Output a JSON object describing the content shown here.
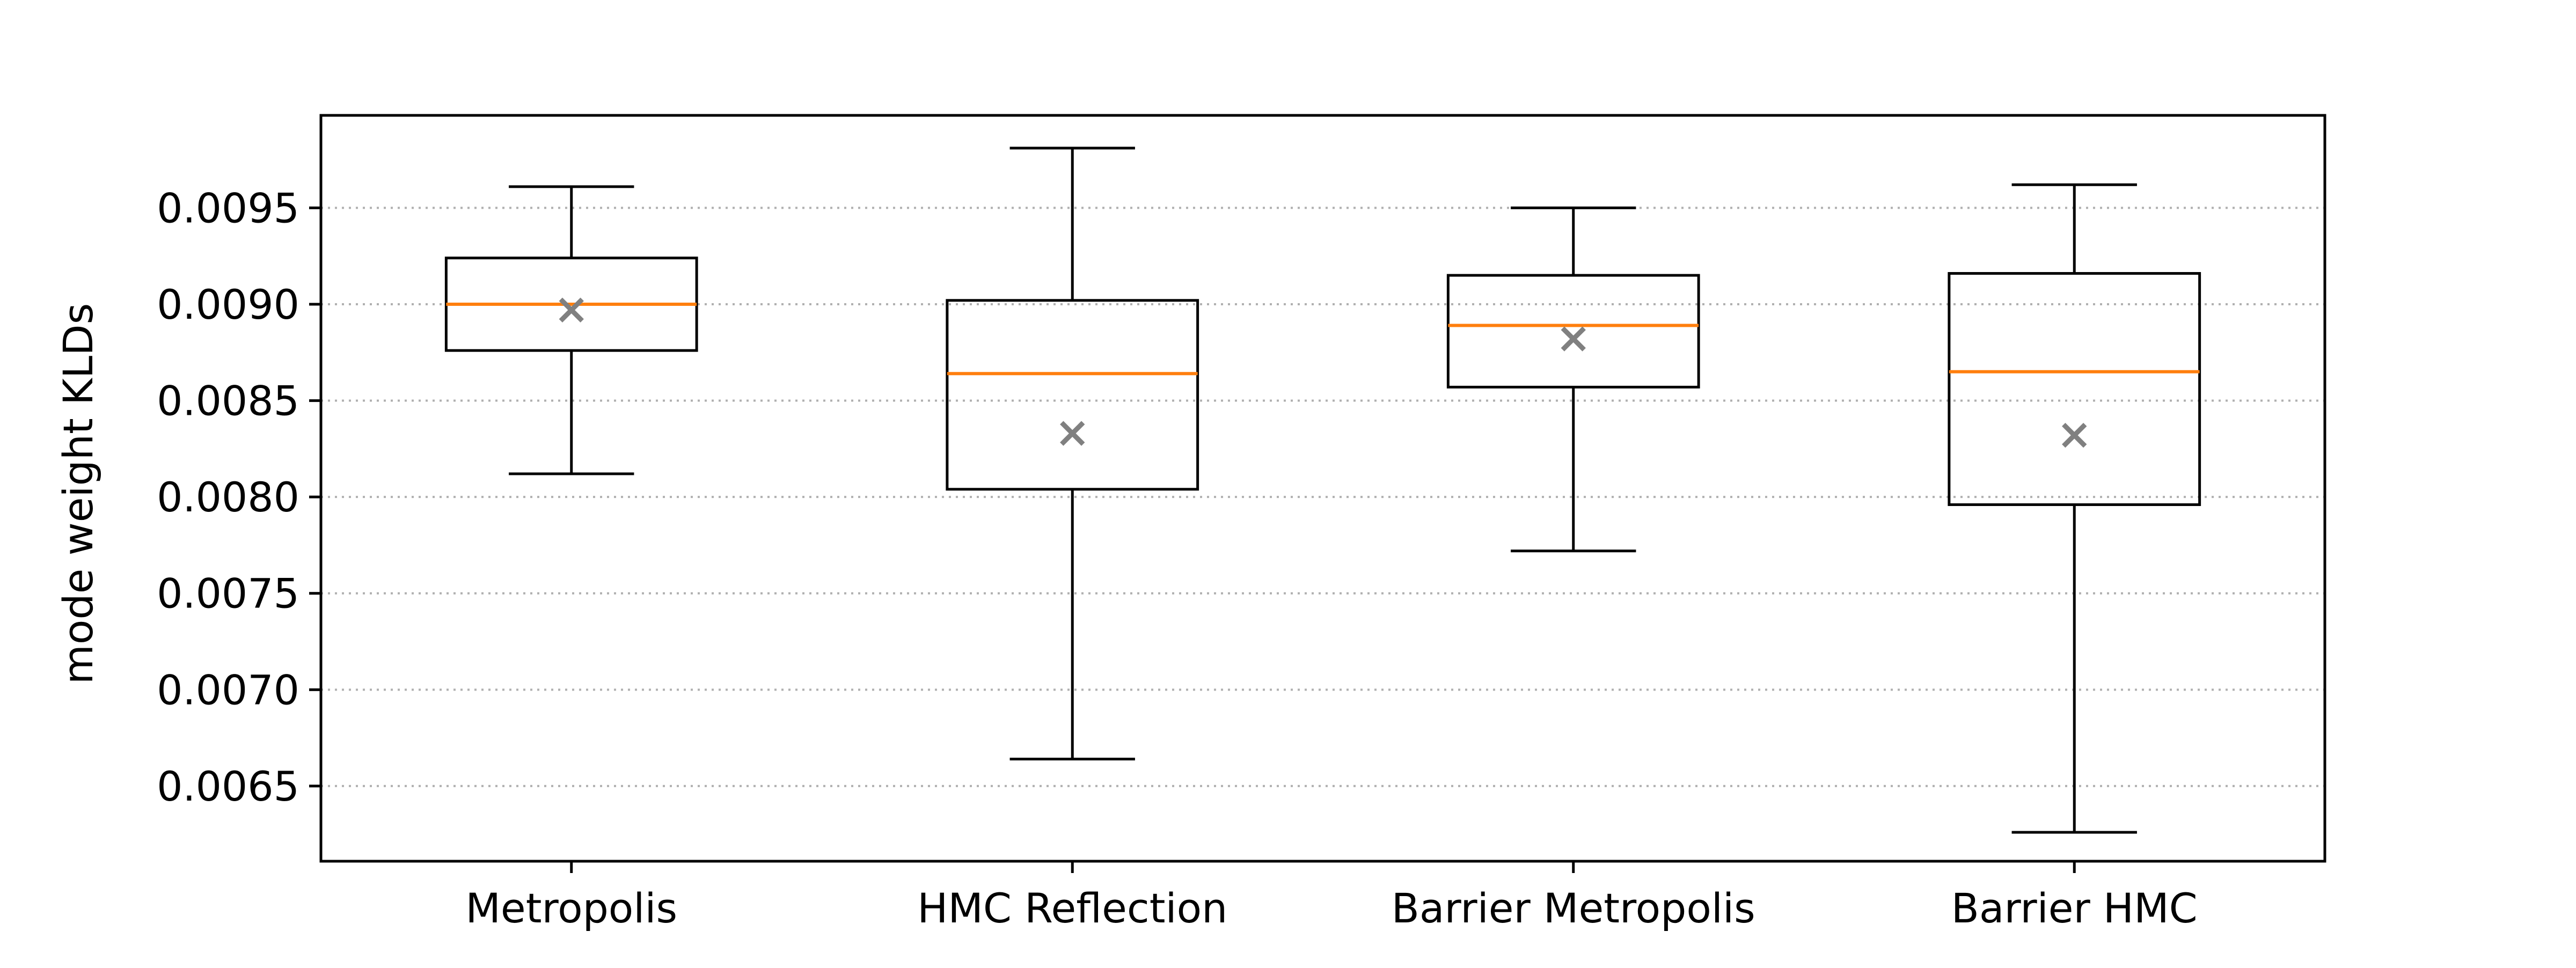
{
  "chart_data": {
    "type": "box",
    "title": "",
    "xlabel": "",
    "ylabel": "mode weight KLDs",
    "categories": [
      "Metropolis",
      "HMC Reflection",
      "Barrier Metropolis",
      "Barrier HMC"
    ],
    "boxes": [
      {
        "name": "Metropolis",
        "whislo": 0.00812,
        "q1": 0.00876,
        "median": 0.009,
        "mean": 0.00897,
        "q3": 0.00924,
        "whishi": 0.00961
      },
      {
        "name": "HMC Reflection",
        "whislo": 0.00664,
        "q1": 0.00804,
        "median": 0.00864,
        "mean": 0.00833,
        "q3": 0.00902,
        "whishi": 0.00981
      },
      {
        "name": "Barrier Metropolis",
        "whislo": 0.00772,
        "q1": 0.00857,
        "median": 0.00889,
        "mean": 0.00882,
        "q3": 0.00915,
        "whishi": 0.0095
      },
      {
        "name": "Barrier HMC",
        "whislo": 0.00626,
        "q1": 0.00796,
        "median": 0.00865,
        "mean": 0.00832,
        "q3": 0.00916,
        "whishi": 0.00962
      }
    ],
    "yticks": [
      0.0065,
      0.007,
      0.0075,
      0.008,
      0.0085,
      0.009,
      0.0095
    ],
    "ytick_labels": [
      "0.0065",
      "0.0070",
      "0.0075",
      "0.0080",
      "0.0085",
      "0.0090",
      "0.0095"
    ],
    "ylim": [
      0.00611,
      0.00998
    ],
    "grid": "horizontal dotted",
    "legend": "none",
    "colors": {
      "box": "#000000",
      "median": "#ff7f0e",
      "mean_marker": "#808080",
      "grid": "#b0b0b0"
    }
  }
}
